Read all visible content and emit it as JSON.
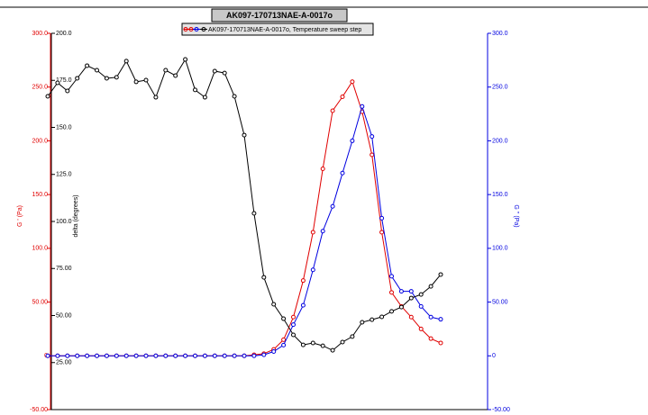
{
  "chart_data": {
    "type": "line",
    "title": "AK097-170713NAE-A-0017o",
    "legend": "AK097-170713NAE-A-0017o, Temperature sweep step",
    "ylabel": "G ' (Pa)",
    "y2label": "G '' (Pa)",
    "y3label": "delta (degrees)",
    "ylim": [
      -50,
      300
    ],
    "yticks": [
      {
        "value": 300,
        "label": "300.0"
      },
      {
        "value": 250,
        "label": "250.0"
      },
      {
        "value": 200,
        "label": "200.0"
      },
      {
        "value": 150,
        "label": "150.0"
      },
      {
        "value": 100,
        "label": "100.0"
      },
      {
        "value": 50,
        "label": "50.00"
      },
      0,
      {
        "value": -50,
        "label": "-50.00"
      }
    ],
    "y2lim": [
      -50,
      300
    ],
    "y2ticks": [
      {
        "value": 300,
        "label": "300.0"
      },
      {
        "value": 250,
        "label": "250.0"
      },
      {
        "value": 200,
        "label": "200.0"
      },
      {
        "value": 150,
        "label": "150.0"
      },
      {
        "value": 100,
        "label": "100.0"
      },
      {
        "value": 50,
        "label": "50.00"
      },
      0,
      {
        "value": -50,
        "label": "-50.00"
      }
    ],
    "y3lim": [
      0,
      200
    ],
    "y3ticks": [
      {
        "value": 200,
        "label": "200.0"
      },
      {
        "value": 175,
        "label": "175.0"
      },
      {
        "value": 150,
        "label": "150.0"
      },
      {
        "value": 125,
        "label": "125.0"
      },
      {
        "value": 100,
        "label": "100.0"
      },
      {
        "value": 75,
        "label": "75.00"
      },
      {
        "value": 50,
        "label": "50.00"
      },
      {
        "value": 25,
        "label": "25.00"
      }
    ],
    "series": [
      {
        "color": "#e00000",
        "axis": "y",
        "values": [
          0,
          0,
          0,
          0,
          0,
          0,
          0,
          0,
          0,
          0,
          0,
          0,
          0,
          0,
          0,
          0,
          0,
          0,
          0,
          0,
          0,
          1,
          2,
          6,
          15,
          36,
          70,
          115,
          174,
          228,
          241,
          255,
          227,
          187,
          115,
          59,
          46,
          36,
          25,
          16,
          12
        ]
      },
      {
        "color": "#0000e0",
        "axis": "y2",
        "values": [
          0,
          0,
          0,
          0,
          0,
          0,
          0,
          0,
          0,
          0,
          0,
          0,
          0,
          0,
          0,
          0,
          0,
          0,
          0,
          0,
          0,
          0,
          1,
          4,
          10,
          29,
          47,
          80,
          116,
          139,
          170,
          200,
          232,
          204,
          128,
          74,
          60,
          60,
          46,
          36,
          34
        ]
      },
      {
        "color": "#000000",
        "axis": "y3",
        "values": [
          166.5,
          173.7,
          169.4,
          176.1,
          182.8,
          180.4,
          176.1,
          176.6,
          185.2,
          174.2,
          175.1,
          166.0,
          180.4,
          177.5,
          186.1,
          169.9,
          166.0,
          179.9,
          178.9,
          166.5,
          145.9,
          104.3,
          70.3,
          56.0,
          48.3,
          39.7,
          34.4,
          35.4,
          33.9,
          31.5,
          35.9,
          38.8,
          46.4,
          47.8,
          49.3,
          52.2,
          54.5,
          59.3,
          61.2,
          65.5,
          71.8
        ]
      }
    ]
  }
}
